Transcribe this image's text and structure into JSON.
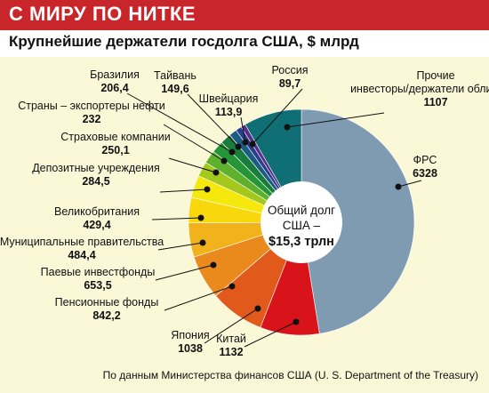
{
  "header": {
    "banner": "С МИРУ ПО НИТКЕ",
    "title": "Крупнейшие держатели госдолга США, $ млрд"
  },
  "center": {
    "line1": "Общий долг",
    "line2": "США –",
    "line3": "$15,3 трлн"
  },
  "source": "По данным Министерства финансов США (U. S. Department of the Treasury)",
  "chart_data": {
    "type": "pie",
    "title": "Крупнейшие держатели госдолга США, $ млрд",
    "categories": [
      "ФРС",
      "Китай",
      "Япония",
      "Пенсионные фонды",
      "Паевые инвестфонды",
      "Муниципальные правительства",
      "Великобритания",
      "Депозитные учреждения",
      "Страховые компании",
      "Страны – экспортеры нефти",
      "Бразилия",
      "Тайвань",
      "Швейцария",
      "Россия",
      "Прочие инвесторы/держатели облигаций"
    ],
    "values": [
      6328,
      1132,
      1038,
      842.2,
      653.5,
      484.4,
      429.4,
      284.5,
      250.1,
      232,
      206.4,
      149.6,
      113.9,
      89.7,
      1107
    ],
    "value_labels": [
      "6328",
      "1132",
      "1038",
      "842,2",
      "653,5",
      "484,4",
      "429,4",
      "284,5",
      "250,1",
      "232",
      "206,4",
      "149,6",
      "113,9",
      "89,7",
      "1107"
    ],
    "label_lines": [
      [
        "ФРС"
      ],
      [
        "Китай"
      ],
      [
        "Япония"
      ],
      [
        "Пенсионные фонды"
      ],
      [
        "Паевые инвестфонды"
      ],
      [
        "Муниципальные правительства"
      ],
      [
        "Великобритания"
      ],
      [
        "Депозитные учреждения"
      ],
      [
        "Страховые компании"
      ],
      [
        "Страны – экспортеры нефти"
      ],
      [
        "Бразилия"
      ],
      [
        "Тайвань"
      ],
      [
        "Швейцария"
      ],
      [
        "Россия"
      ],
      [
        "Прочие",
        "инвесторы/держатели облигаций"
      ]
    ],
    "colors": [
      "#7f9bb2",
      "#d8141a",
      "#e25a1b",
      "#ea8a1d",
      "#f2b21b",
      "#f8d70d",
      "#f4e80c",
      "#a5c81c",
      "#5fb02c",
      "#259537",
      "#1a7c3c",
      "#1d5b82",
      "#293f8c",
      "#5c2a89",
      "#0f6f74"
    ],
    "legend": "none"
  }
}
